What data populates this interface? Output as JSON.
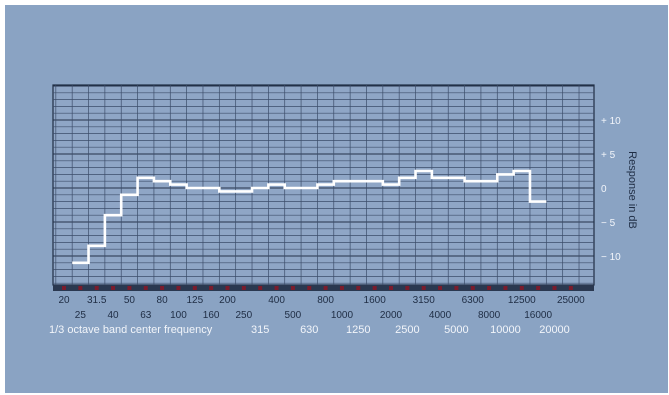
{
  "chart_data": {
    "type": "line",
    "step": true,
    "xlabel": "1/3 octave band center frequency",
    "ylabel": "Response in dB",
    "ylim": [
      -15,
      15
    ],
    "grid": true,
    "y_ticks": [
      {
        "value": 10,
        "label": "+ 10"
      },
      {
        "value": 5,
        "label": "+ 5"
      },
      {
        "value": 0,
        "label": "0"
      },
      {
        "value": -5,
        "label": "− 5"
      },
      {
        "value": -10,
        "label": "− 10"
      }
    ],
    "x_ticks_row1": [
      "20",
      "31.5",
      "50",
      "80",
      "125",
      "200",
      "400",
      "800",
      "1600",
      "3150",
      "6300",
      "12500",
      "25000"
    ],
    "x_ticks_row2": [
      "25",
      "40",
      "63",
      "100",
      "160",
      "250",
      "500",
      "1000",
      "2000",
      "4000",
      "8000",
      "16000"
    ],
    "x_ticks_row3": [
      "315",
      "630",
      "1250",
      "2500",
      "5000",
      "10000",
      "20000"
    ],
    "series": [
      {
        "values": [
          {
            "x": 25,
            "y": -11
          },
          {
            "x": 31.5,
            "y": -8.5
          },
          {
            "x": 40,
            "y": -4
          },
          {
            "x": 50,
            "y": -1
          },
          {
            "x": 63,
            "y": 1.5
          },
          {
            "x": 80,
            "y": 1
          },
          {
            "x": 100,
            "y": 0.5
          },
          {
            "x": 125,
            "y": 0
          },
          {
            "x": 160,
            "y": 0
          },
          {
            "x": 200,
            "y": -0.5
          },
          {
            "x": 250,
            "y": -0.5
          },
          {
            "x": 315,
            "y": 0
          },
          {
            "x": 400,
            "y": 0.5
          },
          {
            "x": 500,
            "y": 0
          },
          {
            "x": 630,
            "y": 0
          },
          {
            "x": 800,
            "y": 0.5
          },
          {
            "x": 1000,
            "y": 1
          },
          {
            "x": 1250,
            "y": 1
          },
          {
            "x": 1600,
            "y": 1
          },
          {
            "x": 2000,
            "y": 0.5
          },
          {
            "x": 2500,
            "y": 1.5
          },
          {
            "x": 3150,
            "y": 2.5
          },
          {
            "x": 4000,
            "y": 1.5
          },
          {
            "x": 5000,
            "y": 1.5
          },
          {
            "x": 6300,
            "y": 1
          },
          {
            "x": 8000,
            "y": 1
          },
          {
            "x": 10000,
            "y": 2
          },
          {
            "x": 12500,
            "y": 2.5
          },
          {
            "x": 16000,
            "y": -2
          }
        ]
      }
    ]
  }
}
